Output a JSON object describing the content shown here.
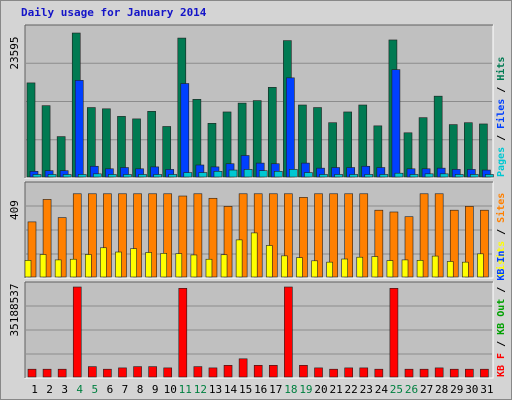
{
  "title": "Daily usage for January 2014",
  "colors": {
    "panel_bg": "#c0c0c0",
    "frame_bg": "#d4d4d4",
    "pages": "#00c8d2",
    "files": "#0040ff",
    "hits": "#007a52",
    "visits": "#ffff00",
    "sites": "#ff8000",
    "kb_in": "#0040ff",
    "kb_out": "#00a000",
    "kb_f": "#ff0000",
    "weekend_label": "#008040",
    "weekday_label": "#000000",
    "title": "#1414c8"
  },
  "chart_data": [
    {
      "type": "bar",
      "panel": "top",
      "ymax_label": "23595",
      "ylim": [
        0,
        23595
      ],
      "legend_words": [
        "Pages",
        "Files",
        "Hits"
      ],
      "categories": [
        "1",
        "2",
        "3",
        "4",
        "5",
        "6",
        "7",
        "8",
        "9",
        "10",
        "11",
        "12",
        "13",
        "14",
        "15",
        "16",
        "17",
        "18",
        "19",
        "20",
        "21",
        "22",
        "23",
        "24",
        "25",
        "26",
        "27",
        "28",
        "29",
        "30",
        "31"
      ],
      "weekend_days": [
        "4",
        "5",
        "11",
        "12",
        "18",
        "19",
        "25",
        "26"
      ],
      "series": [
        {
          "name": "Hits",
          "values": [
            14900,
            11300,
            6400,
            22800,
            11000,
            10800,
            9600,
            9200,
            10400,
            8000,
            22000,
            12300,
            8500,
            10300,
            11700,
            12100,
            14200,
            21600,
            11400,
            11000,
            8600,
            10300,
            11400,
            8100,
            21700,
            7000,
            9400,
            12800,
            8300,
            8600,
            8400
          ]
        },
        {
          "name": "Files",
          "values": [
            900,
            1000,
            1000,
            15300,
            1700,
            1300,
            1500,
            1300,
            1600,
            1200,
            14800,
            1900,
            1600,
            2100,
            3400,
            2200,
            2100,
            15700,
            2200,
            1400,
            1500,
            1500,
            1700,
            1500,
            17000,
            1300,
            1300,
            1400,
            1200,
            1200,
            1100
          ]
        },
        {
          "name": "Pages",
          "values": [
            400,
            400,
            400,
            400,
            500,
            400,
            400,
            400,
            400,
            400,
            700,
            700,
            900,
            1100,
            1200,
            1000,
            900,
            1200,
            700,
            400,
            400,
            400,
            400,
            400,
            600,
            400,
            500,
            500,
            400,
            400,
            400
          ]
        }
      ]
    },
    {
      "type": "bar",
      "panel": "middle",
      "ymax_label": "409",
      "ylim": [
        0,
        409
      ],
      "legend_words": [
        "Visits",
        "Sites"
      ],
      "categories": [
        "1",
        "2",
        "3",
        "4",
        "5",
        "6",
        "7",
        "8",
        "9",
        "10",
        "11",
        "12",
        "13",
        "14",
        "15",
        "16",
        "17",
        "18",
        "19",
        "20",
        "21",
        "22",
        "23",
        "24",
        "25",
        "26",
        "27",
        "28",
        "29",
        "30",
        "31"
      ],
      "series": [
        {
          "name": "Sites",
          "values": [
            245,
            345,
            264,
            370,
            370,
            370,
            370,
            370,
            370,
            370,
            360,
            370,
            350,
            314,
            370,
            370,
            370,
            370,
            354,
            370,
            370,
            370,
            370,
            297,
            289,
            268,
            370,
            370,
            297,
            314,
            297
          ]
        },
        {
          "name": "Visits",
          "values": [
            74,
            100,
            76,
            79,
            100,
            130,
            111,
            126,
            109,
            105,
            104,
            98,
            79,
            99,
            165,
            196,
            140,
            94,
            86,
            72,
            66,
            80,
            88,
            91,
            73,
            76,
            74,
            93,
            69,
            66,
            103
          ]
        }
      ]
    },
    {
      "type": "bar",
      "panel": "bottom",
      "ymax_label": "35188537",
      "ylim": [
        0,
        35188537
      ],
      "legend_words": [
        "KB F",
        "KB Out",
        "KB In"
      ],
      "categories": [
        "1",
        "2",
        "3",
        "4",
        "5",
        "6",
        "7",
        "8",
        "9",
        "10",
        "11",
        "12",
        "13",
        "14",
        "15",
        "16",
        "17",
        "18",
        "19",
        "20",
        "21",
        "22",
        "23",
        "24",
        "25",
        "26",
        "27",
        "28",
        "29",
        "30",
        "31"
      ],
      "series": [
        {
          "name": "KB F",
          "values": [
            3048000,
            3048000,
            3048000,
            35188537,
            4064000,
            3048000,
            3556000,
            4064000,
            4064000,
            3556000,
            34680000,
            4064000,
            3556000,
            4572000,
            7112000,
            4572000,
            4572000,
            35188537,
            4572000,
            3556000,
            3048000,
            3556000,
            3556000,
            3048000,
            34680000,
            3048000,
            3048000,
            3556000,
            3048000,
            3048000,
            3048000
          ]
        }
      ]
    }
  ]
}
